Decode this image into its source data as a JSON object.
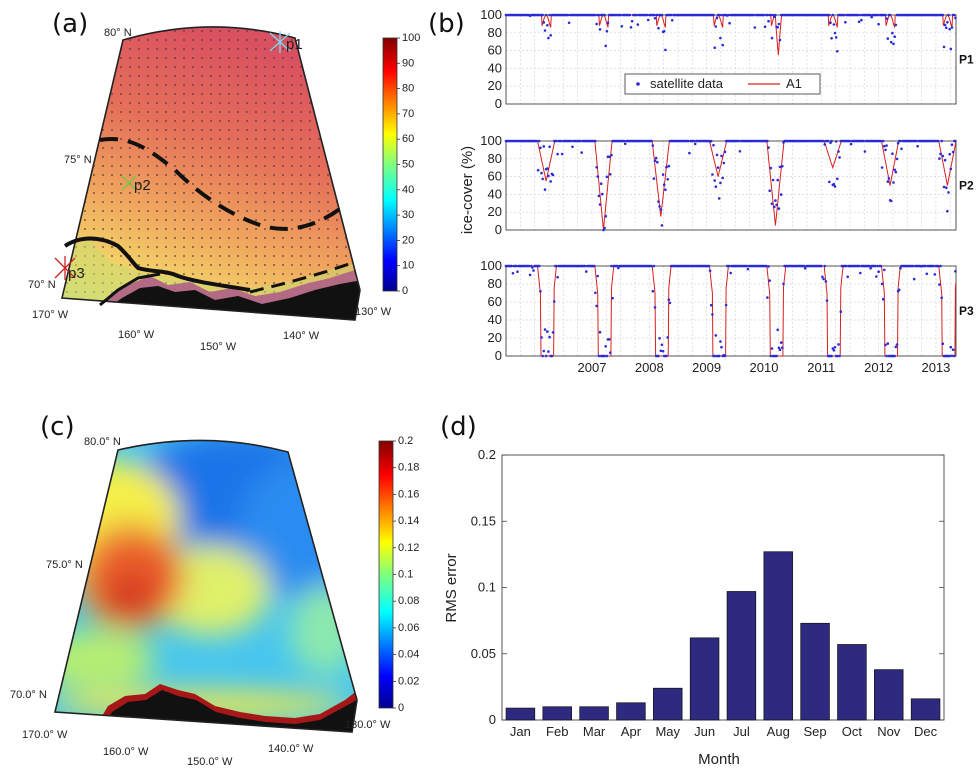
{
  "chart_data": [
    {
      "panel": "(a)",
      "type": "heatmap",
      "lat_labels": [
        "80° N",
        "75° N",
        "70° N"
      ],
      "lon_labels": [
        "170° W",
        "160° W",
        "150° W",
        "140° W",
        "130° W"
      ],
      "points": [
        "p1",
        "p2",
        "p3"
      ],
      "colorbar": {
        "min": 0,
        "max": 100,
        "ticks": [
          0,
          10,
          20,
          30,
          40,
          50,
          60,
          70,
          80,
          90,
          100
        ]
      }
    },
    {
      "panel": "(b)",
      "type": "line",
      "ylabel": "ice-cover (%)",
      "yticks": [
        0,
        20,
        40,
        60,
        80,
        100
      ],
      "xticks": [
        "2007",
        "2008",
        "2009",
        "2010",
        "2011",
        "2012",
        "2013"
      ],
      "rows": [
        "P1",
        "P2",
        "P3"
      ],
      "legend": {
        "items": [
          "satellite data",
          "A1"
        ],
        "position": "center"
      },
      "grid": true,
      "series": [
        {
          "name": "satellite data",
          "style": "points",
          "color": "#2b2bd6"
        },
        {
          "name": "A1",
          "style": "line",
          "color": "#d62020"
        }
      ]
    },
    {
      "panel": "(c)",
      "type": "heatmap",
      "lat_labels": [
        "80.0° N",
        "75.0° N",
        "70.0° N"
      ],
      "lon_labels": [
        "170.0° W",
        "160.0° W",
        "150.0° W",
        "140.0° W",
        "130.0° W"
      ],
      "colorbar": {
        "min": 0,
        "max": 0.2,
        "ticks": [
          "0",
          "0.02",
          "0.04",
          "0.06",
          "0.08",
          "0.1",
          "0.12",
          "0.14",
          "0.16",
          "0.18",
          "0.2"
        ]
      }
    },
    {
      "panel": "(d)",
      "type": "bar",
      "categories": [
        "Jan",
        "Feb",
        "Mar",
        "Apr",
        "May",
        "Jun",
        "Jul",
        "Aug",
        "Sep",
        "Oct",
        "Nov",
        "Dec"
      ],
      "values": [
        0.009,
        0.01,
        0.01,
        0.013,
        0.024,
        0.062,
        0.097,
        0.127,
        0.073,
        0.057,
        0.038,
        0.016
      ],
      "xlabel": "Month",
      "ylabel": "RMS error",
      "ylim": [
        0,
        0.2
      ],
      "yticks": [
        "0",
        "0.05",
        "0.1",
        "0.15",
        "0.2"
      ],
      "bar_color": "#2e2a80"
    }
  ],
  "panel_labels": {
    "a": "(a)",
    "b": "(b)",
    "c": "(c)",
    "d": "(d)"
  },
  "map_a": {
    "lat_80": "80° N",
    "lat_75": "75° N",
    "lat_70": "70° N",
    "lon_170": "170° W",
    "lon_160": "160° W",
    "lon_150": "150° W",
    "lon_140": "140° W",
    "lon_130": "130° W",
    "p1": "p1",
    "p2": "p2",
    "p3": "p3"
  },
  "map_c": {
    "lat_80": "80.0° N",
    "lat_75": "75.0° N",
    "lat_70": "70.0° N",
    "lon_170": "170.0° W",
    "lon_160": "160.0° W",
    "lon_150": "150.0° W",
    "lon_140": "140.0° W",
    "lon_130": "130.0° W"
  },
  "colors": {
    "sat": "#2b2bd6",
    "model": "#d62020",
    "bar": "#2e2a80",
    "land": "#111111"
  }
}
